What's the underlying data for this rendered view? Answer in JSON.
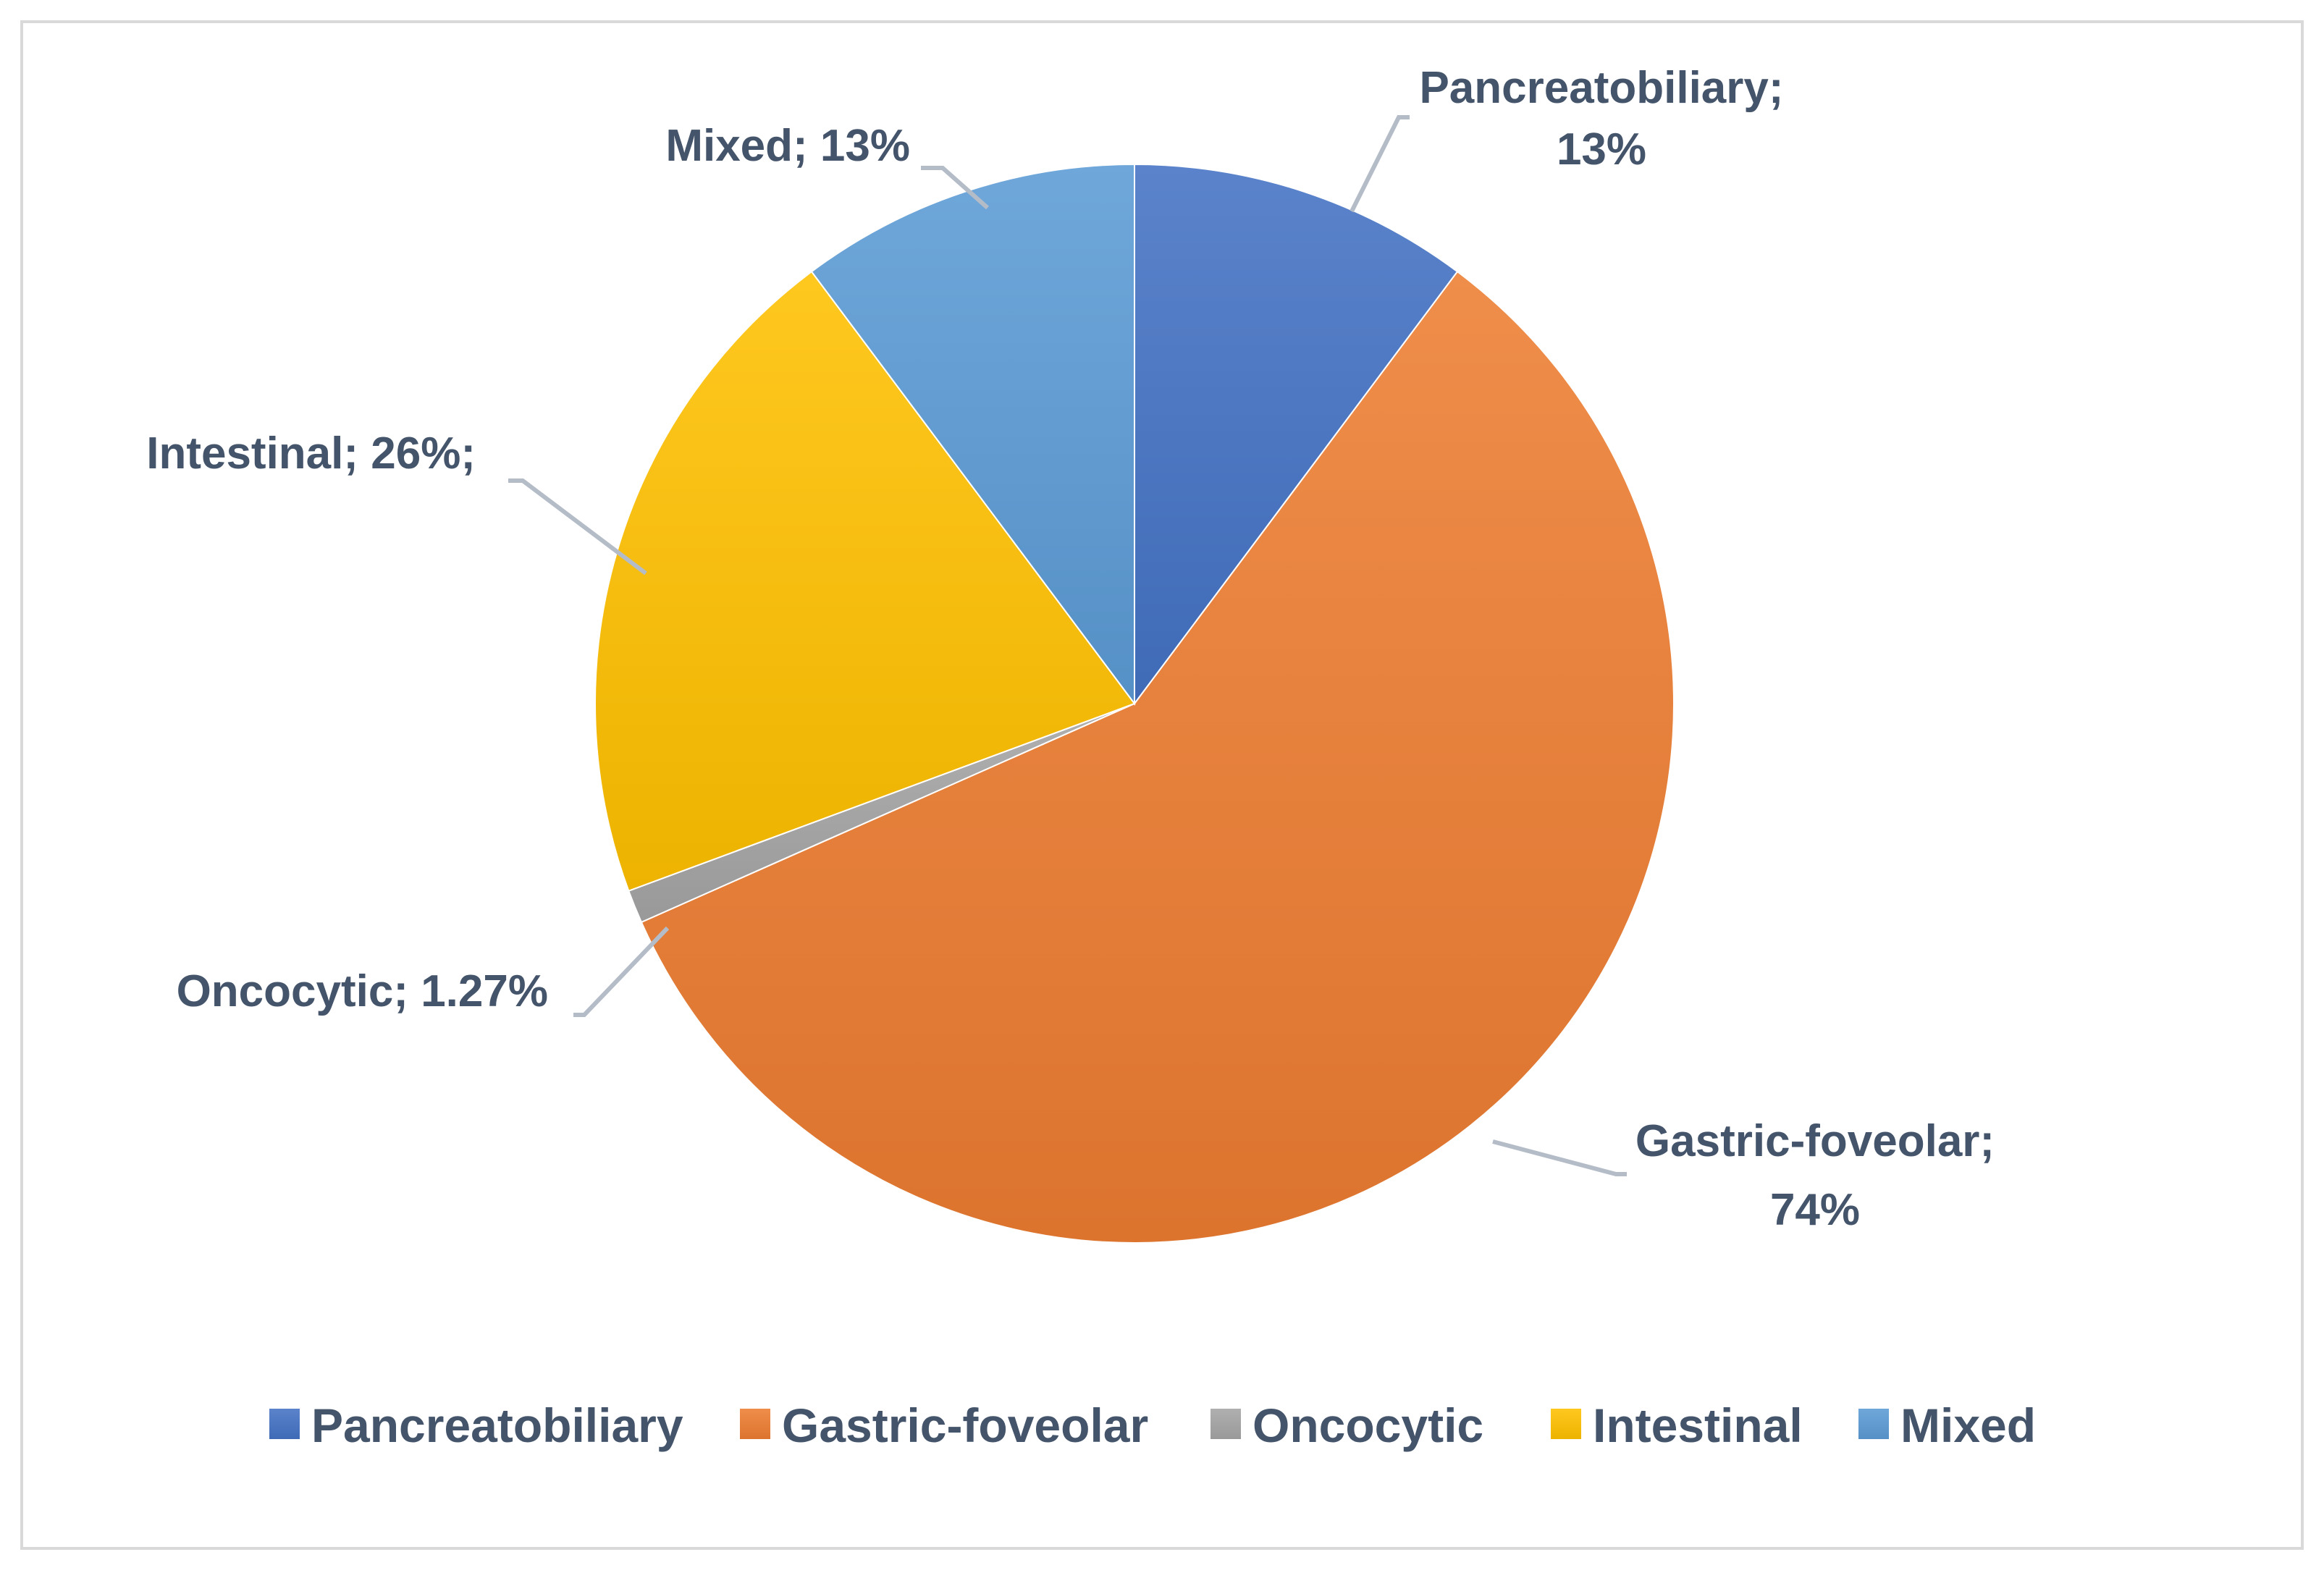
{
  "chart_data": {
    "type": "pie",
    "title": "",
    "slices": [
      {
        "name": "Pancreatobiliary",
        "label": "Pancreatobiliary;",
        "label2": "13%",
        "value": 13,
        "color": "#4472c4"
      },
      {
        "name": "Gastric-foveolar",
        "label": "Gastric-foveolar;",
        "label2": "74%",
        "value": 74,
        "color": "#ed7d31"
      },
      {
        "name": "Oncocytic",
        "label": "Oncocytic; 1.27%",
        "label2": "",
        "value": 1.27,
        "color": "#a5a5a5"
      },
      {
        "name": "Intestinal",
        "label": "Intestinal; 26%;",
        "label2": "",
        "value": 26,
        "color": "#ffc000"
      },
      {
        "name": "Mixed",
        "label": "Mixed; 13%",
        "label2": "",
        "value": 13,
        "color": "#5b9bd5"
      }
    ],
    "legend": {
      "position": "bottom",
      "items": [
        "Pancreatobiliary",
        "Gastric-foveolar",
        "Oncocytic",
        "Intestinal",
        "Mixed"
      ]
    }
  }
}
